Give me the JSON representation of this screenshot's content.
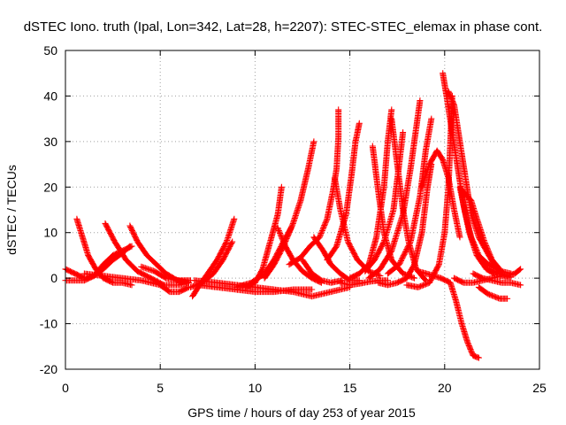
{
  "chart_data": {
    "type": "scatter",
    "title": "dSTEC Iono. truth (Ipal, Lon=342, Lat=28, h=2207): STEC-STEC_elemax in phase cont.",
    "xlabel": "GPS time / hours of day 253 of year 2015",
    "ylabel": "dSTEC  / TECUs",
    "xlim": [
      0,
      25
    ],
    "ylim": [
      -20,
      50
    ],
    "xticks": [
      0,
      5,
      10,
      15,
      20,
      25
    ],
    "yticks": [
      -20,
      -10,
      0,
      10,
      20,
      30,
      40,
      50
    ],
    "xtick_labels": [
      "0",
      "5",
      "10",
      "15",
      "20",
      "25"
    ],
    "ytick_labels": [
      "-20",
      "-10",
      "0",
      "10",
      "20",
      "30",
      "40",
      "50"
    ],
    "grid": true,
    "marker": "+",
    "color": "#ff0000",
    "series": [
      {
        "points": [
          [
            0.6,
            13
          ],
          [
            0.9,
            9
          ],
          [
            1.2,
            5
          ],
          [
            1.6,
            2
          ],
          [
            2.0,
            0
          ],
          [
            2.5,
            -1
          ],
          [
            3.0,
            -1
          ],
          [
            3.5,
            -1.5
          ]
        ]
      },
      {
        "points": [
          [
            0,
            -0.5
          ],
          [
            0.5,
            -0.5
          ],
          [
            1.0,
            -0.5
          ],
          [
            1.5,
            0.5
          ],
          [
            2.0,
            3
          ],
          [
            2.5,
            5
          ],
          [
            3.0,
            6
          ],
          [
            3.5,
            7
          ]
        ]
      },
      {
        "points": [
          [
            0,
            2
          ],
          [
            0.5,
            1
          ],
          [
            1.0,
            0
          ],
          [
            1.5,
            0.5
          ],
          [
            2.0,
            2
          ],
          [
            2.5,
            4
          ],
          [
            3.0,
            5.5
          ],
          [
            3.4,
            7
          ]
        ]
      },
      {
        "points": [
          [
            2.1,
            12
          ],
          [
            2.6,
            8
          ],
          [
            3.2,
            4
          ],
          [
            3.8,
            1.5
          ],
          [
            4.5,
            0
          ],
          [
            5.2,
            -1.5
          ],
          [
            6.0,
            -1.5
          ],
          [
            6.5,
            -1
          ]
        ]
      },
      {
        "points": [
          [
            3.4,
            11.5
          ],
          [
            3.8,
            8
          ],
          [
            4.3,
            5
          ],
          [
            4.8,
            3
          ],
          [
            5.3,
            1
          ],
          [
            5.9,
            -0.5
          ],
          [
            6.5,
            -1
          ]
        ]
      },
      {
        "points": [
          [
            1.0,
            1
          ],
          [
            2.0,
            0.5
          ],
          [
            3.0,
            0
          ],
          [
            4.0,
            -0.5
          ],
          [
            5.0,
            -1.5
          ],
          [
            5.5,
            -3
          ],
          [
            6.0,
            -3
          ],
          [
            6.5,
            -2
          ]
        ]
      },
      {
        "points": [
          [
            4.0,
            2.5
          ],
          [
            4.7,
            1.5
          ],
          [
            5.3,
            0
          ],
          [
            6.0,
            -0.5
          ],
          [
            6.6,
            -0.5
          ]
        ]
      },
      {
        "points": [
          [
            6.7,
            -4
          ],
          [
            7.0,
            -2
          ],
          [
            7.5,
            1
          ],
          [
            8.0,
            4
          ],
          [
            8.5,
            8
          ],
          [
            8.9,
            13
          ]
        ]
      },
      {
        "points": [
          [
            6.6,
            -2
          ],
          [
            7.2,
            -1
          ],
          [
            7.8,
            1
          ],
          [
            8.3,
            4
          ],
          [
            8.8,
            8
          ]
        ]
      },
      {
        "points": [
          [
            7.0,
            -1.5
          ],
          [
            8.0,
            -2
          ],
          [
            9.0,
            -2.5
          ],
          [
            10.0,
            -3
          ],
          [
            11.0,
            -3
          ],
          [
            12.0,
            -2.5
          ],
          [
            13.0,
            -2.5
          ]
        ]
      },
      {
        "points": [
          [
            6.8,
            -0.5
          ],
          [
            8.0,
            -1
          ],
          [
            9.0,
            -1.5
          ],
          [
            10.0,
            -2
          ],
          [
            11.0,
            -2.5
          ],
          [
            12.0,
            -3
          ],
          [
            13.0,
            -4
          ],
          [
            14.0,
            -3
          ],
          [
            15.0,
            -2
          ]
        ]
      },
      {
        "points": [
          [
            9.5,
            -2
          ],
          [
            10.0,
            -1
          ],
          [
            10.4,
            2
          ],
          [
            10.8,
            8
          ],
          [
            11.2,
            14
          ],
          [
            11.4,
            20
          ]
        ]
      },
      {
        "points": [
          [
            9.0,
            -2
          ],
          [
            9.8,
            -1
          ],
          [
            10.5,
            1
          ],
          [
            11.0,
            4
          ],
          [
            11.5,
            8
          ],
          [
            11.9,
            11
          ]
        ]
      },
      {
        "points": [
          [
            10.5,
            0
          ],
          [
            11.0,
            3
          ],
          [
            11.5,
            7
          ],
          [
            12.0,
            12
          ],
          [
            12.4,
            17
          ],
          [
            12.8,
            24
          ],
          [
            13.1,
            30
          ]
        ]
      },
      {
        "points": [
          [
            11.2,
            11
          ],
          [
            11.6,
            7
          ],
          [
            12.0,
            4
          ],
          [
            12.5,
            1.5
          ],
          [
            13.0,
            0
          ],
          [
            13.5,
            -1
          ]
        ]
      },
      {
        "points": [
          [
            11.8,
            3
          ],
          [
            12.4,
            4.5
          ],
          [
            12.9,
            7
          ],
          [
            13.4,
            9
          ],
          [
            13.8,
            13
          ],
          [
            14.1,
            19
          ],
          [
            14.3,
            24
          ],
          [
            14.4,
            31
          ],
          [
            14.4,
            37
          ]
        ]
      },
      {
        "points": [
          [
            12.5,
            4
          ],
          [
            13.0,
            1
          ],
          [
            13.5,
            -0.5
          ],
          [
            14.0,
            -1
          ],
          [
            14.6,
            -0.5
          ]
        ]
      },
      {
        "points": [
          [
            13.1,
            9
          ],
          [
            13.6,
            6
          ],
          [
            14.0,
            3
          ],
          [
            14.5,
            1
          ],
          [
            15.0,
            -0.5
          ],
          [
            15.5,
            -0.5
          ]
        ]
      },
      {
        "points": [
          [
            13.8,
            4
          ],
          [
            14.3,
            7
          ],
          [
            14.8,
            14
          ],
          [
            15.1,
            23
          ],
          [
            15.3,
            30
          ],
          [
            15.5,
            34
          ]
        ]
      },
      {
        "points": [
          [
            14.2,
            22
          ],
          [
            14.5,
            15
          ],
          [
            14.9,
            8
          ],
          [
            15.4,
            4
          ],
          [
            16.0,
            1.5
          ],
          [
            16.6,
            0.5
          ]
        ]
      },
      {
        "points": [
          [
            14.5,
            -1
          ],
          [
            15.0,
            -1.5
          ],
          [
            15.5,
            -1.2
          ],
          [
            16.0,
            -0.8
          ],
          [
            16.5,
            -0.5
          ],
          [
            17.0,
            -0.5
          ]
        ]
      },
      {
        "points": [
          [
            15.0,
            0
          ],
          [
            15.5,
            1
          ],
          [
            16.0,
            3
          ],
          [
            16.4,
            9
          ],
          [
            16.8,
            20
          ],
          [
            17.0,
            30
          ],
          [
            17.2,
            37
          ]
        ]
      },
      {
        "points": [
          [
            16.2,
            29
          ],
          [
            16.5,
            19
          ],
          [
            16.8,
            10
          ],
          [
            17.2,
            4
          ],
          [
            17.8,
            1
          ],
          [
            18.4,
            0
          ]
        ]
      },
      {
        "points": [
          [
            15.8,
            1.5
          ],
          [
            16.3,
            4
          ],
          [
            16.8,
            8
          ],
          [
            17.3,
            15
          ],
          [
            17.6,
            25
          ],
          [
            17.8,
            32
          ]
        ]
      },
      {
        "points": [
          [
            16.0,
            0
          ],
          [
            16.6,
            2
          ],
          [
            17.2,
            6
          ],
          [
            17.8,
            14
          ],
          [
            18.2,
            24
          ],
          [
            18.5,
            33
          ],
          [
            18.7,
            39
          ]
        ]
      },
      {
        "points": [
          [
            17.2,
            35
          ],
          [
            17.5,
            25
          ],
          [
            17.8,
            15
          ],
          [
            18.1,
            8
          ],
          [
            18.5,
            2
          ],
          [
            19.0,
            -0.5
          ]
        ]
      },
      {
        "points": [
          [
            16.5,
            -1
          ],
          [
            17.0,
            -1.5
          ],
          [
            17.5,
            -1
          ],
          [
            18.0,
            0
          ],
          [
            18.4,
            3
          ],
          [
            18.8,
            10
          ],
          [
            19.1,
            20
          ],
          [
            19.3,
            25
          ]
        ]
      },
      {
        "points": [
          [
            17.0,
            1
          ],
          [
            17.6,
            3
          ],
          [
            18.2,
            8
          ],
          [
            18.7,
            18
          ],
          [
            19.0,
            28
          ],
          [
            19.3,
            35
          ]
        ]
      },
      {
        "points": [
          [
            18.0,
            -1.5
          ],
          [
            18.6,
            -2
          ],
          [
            19.2,
            -1
          ],
          [
            19.7,
            3
          ],
          [
            20.0,
            10
          ],
          [
            20.2,
            20
          ],
          [
            20.3,
            30
          ],
          [
            20.4,
            40
          ]
        ]
      },
      {
        "points": [
          [
            18.8,
            20
          ],
          [
            19.2,
            25
          ],
          [
            19.6,
            28
          ],
          [
            19.9,
            26
          ],
          [
            20.2,
            22
          ],
          [
            20.5,
            15
          ],
          [
            20.8,
            9
          ]
        ]
      },
      {
        "points": [
          [
            18.6,
            1.5
          ],
          [
            19.2,
            0.8
          ],
          [
            19.8,
            0
          ],
          [
            20.3,
            -1
          ],
          [
            20.6,
            -5
          ],
          [
            20.9,
            -10
          ],
          [
            21.2,
            -14
          ],
          [
            21.5,
            -17
          ],
          [
            21.8,
            -17.5
          ]
        ]
      },
      {
        "points": [
          [
            19.9,
            45
          ],
          [
            20.1,
            40
          ],
          [
            20.4,
            32
          ],
          [
            20.7,
            24
          ],
          [
            21.0,
            16
          ],
          [
            21.3,
            10
          ],
          [
            21.7,
            5
          ],
          [
            22.2,
            2
          ],
          [
            22.6,
            1
          ]
        ]
      },
      {
        "points": [
          [
            20.2,
            41
          ],
          [
            20.5,
            38
          ],
          [
            20.8,
            30
          ],
          [
            21.1,
            22
          ],
          [
            21.4,
            14
          ],
          [
            21.8,
            9
          ],
          [
            22.2,
            6
          ],
          [
            22.6,
            3
          ],
          [
            23.0,
            1
          ]
        ]
      },
      {
        "points": [
          [
            20.8,
            20
          ],
          [
            21.1,
            14
          ],
          [
            21.4,
            9
          ],
          [
            21.8,
            5
          ],
          [
            22.3,
            3
          ],
          [
            22.8,
            2
          ]
        ]
      },
      {
        "points": [
          [
            21.0,
            19
          ],
          [
            21.4,
            17
          ],
          [
            21.7,
            13
          ],
          [
            22.1,
            8
          ],
          [
            22.5,
            4
          ],
          [
            23.0,
            1.5
          ],
          [
            23.5,
            1
          ]
        ]
      },
      {
        "points": [
          [
            21.8,
            -2
          ],
          [
            22.3,
            -3.5
          ],
          [
            22.9,
            -4.5
          ],
          [
            23.3,
            -4.5
          ]
        ]
      },
      {
        "points": [
          [
            21.5,
            1
          ],
          [
            22.0,
            0
          ],
          [
            22.5,
            -0.5
          ],
          [
            23.0,
            -1
          ],
          [
            23.5,
            -1
          ],
          [
            24.0,
            -1.5
          ]
        ]
      },
      {
        "points": [
          [
            22.3,
            2
          ],
          [
            22.8,
            1
          ],
          [
            23.3,
            0.5
          ],
          [
            23.7,
            1
          ],
          [
            24.0,
            2
          ]
        ]
      },
      {
        "points": [
          [
            20.5,
            0
          ],
          [
            21.0,
            -1
          ],
          [
            21.5,
            -1
          ],
          [
            22.0,
            -0.5
          ],
          [
            22.5,
            0
          ],
          [
            23.0,
            0.5
          ],
          [
            23.5,
            0.2
          ]
        ]
      }
    ]
  }
}
